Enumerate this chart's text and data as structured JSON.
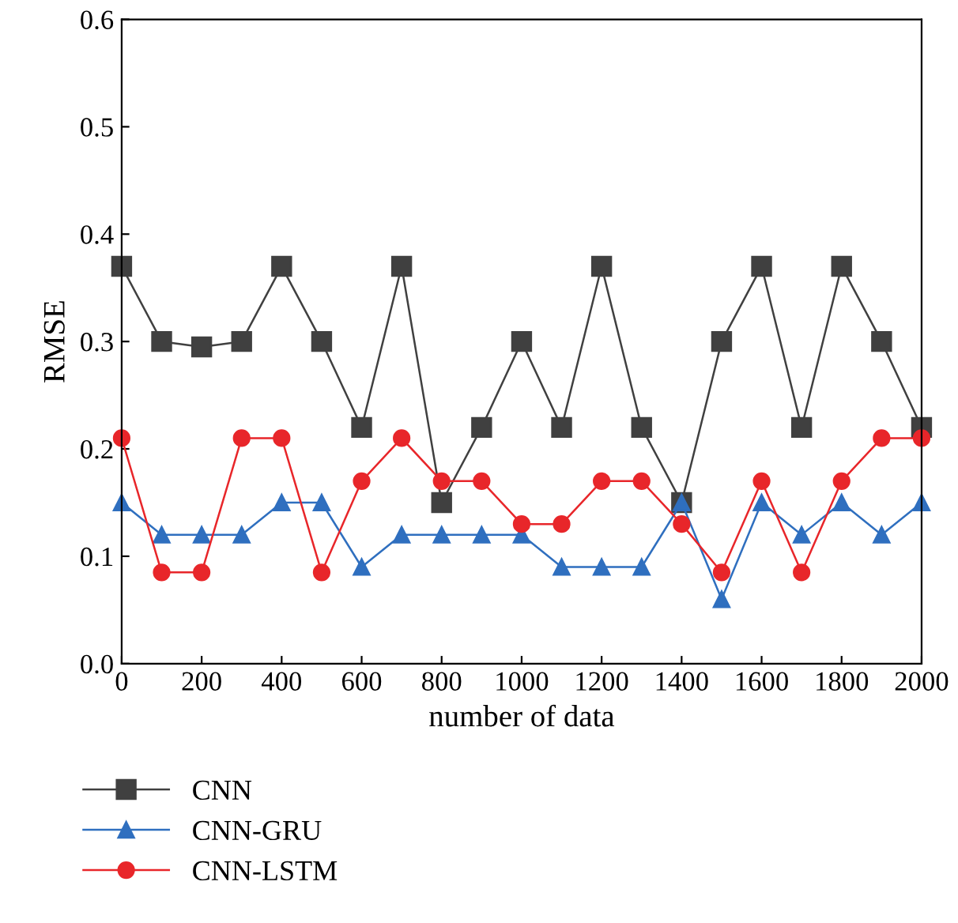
{
  "chart_data": {
    "type": "line",
    "xlabel": "number of data",
    "ylabel": "RMSE",
    "x": [
      0,
      100,
      200,
      300,
      400,
      500,
      600,
      700,
      800,
      900,
      1000,
      1100,
      1200,
      1300,
      1400,
      1500,
      1600,
      1700,
      1800,
      1900,
      2000
    ],
    "series": [
      {
        "name": "CNN",
        "color": "#404040",
        "marker": "square",
        "values": [
          0.37,
          0.3,
          0.295,
          0.3,
          0.37,
          0.3,
          0.22,
          0.37,
          0.15,
          0.22,
          0.3,
          0.22,
          0.37,
          0.22,
          0.15,
          0.3,
          0.37,
          0.22,
          0.37,
          0.3,
          0.22
        ]
      },
      {
        "name": "CNN-GRU",
        "color": "#2f6fbf",
        "marker": "triangle",
        "values": [
          0.15,
          0.12,
          0.12,
          0.12,
          0.15,
          0.15,
          0.09,
          0.12,
          0.12,
          0.12,
          0.12,
          0.09,
          0.09,
          0.09,
          0.15,
          0.06,
          0.15,
          0.12,
          0.15,
          0.12,
          0.15
        ]
      },
      {
        "name": "CNN-LSTM",
        "color": "#e8262a",
        "marker": "circle",
        "values": [
          0.21,
          0.085,
          0.085,
          0.21,
          0.21,
          0.085,
          0.17,
          0.21,
          0.17,
          0.17,
          0.13,
          0.13,
          0.17,
          0.17,
          0.13,
          0.085,
          0.17,
          0.085,
          0.17,
          0.21,
          0.21
        ]
      }
    ],
    "xlim": [
      0,
      2000
    ],
    "xticks": [
      0,
      200,
      400,
      600,
      800,
      1000,
      1200,
      1400,
      1600,
      1800,
      2000
    ],
    "ylim": [
      0.0,
      0.6
    ],
    "yticks": [
      {
        "value": 0.0,
        "label": "0.0"
      },
      {
        "value": 0.1,
        "label": "0.1"
      },
      {
        "value": 0.2,
        "label": "0.2"
      },
      {
        "value": 0.3,
        "label": "0.3"
      },
      {
        "value": 0.4,
        "label": "0.4"
      },
      {
        "value": 0.5,
        "label": "0.5"
      },
      {
        "value": 0.6,
        "label": "0.6"
      }
    ],
    "grid": false,
    "legend": "bottom",
    "line_style": "solid"
  }
}
